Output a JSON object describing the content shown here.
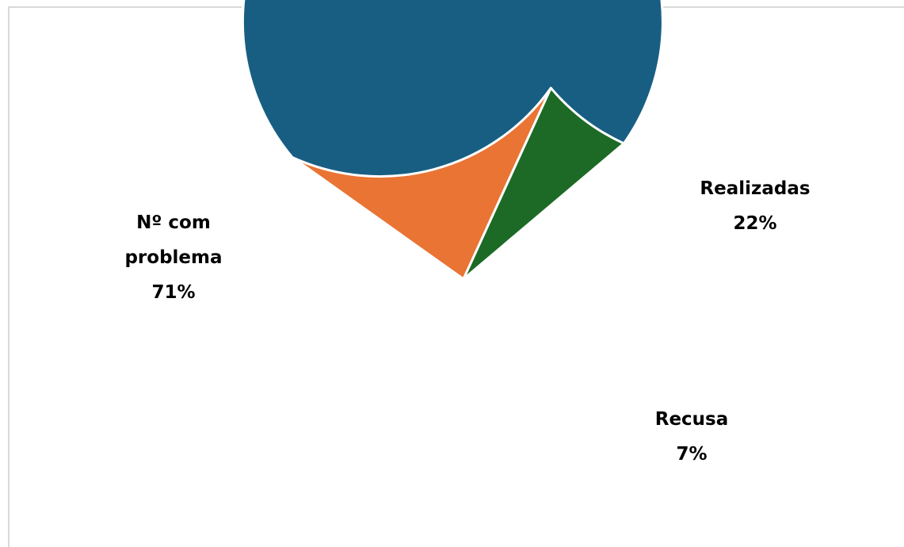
{
  "chart_data": {
    "type": "pie",
    "title": "",
    "slices": [
      {
        "label_lines": [
          "Nº com",
          "problema"
        ],
        "value": 71,
        "value_label": "71%",
        "color": "#185e83"
      },
      {
        "label_lines": [
          "Realizadas"
        ],
        "value": 22,
        "value_label": "22%",
        "color": "#e97434"
      },
      {
        "label_lines": [
          "Recusa"
        ],
        "value": 7,
        "value_label": "7%",
        "color": "#1c6a26"
      }
    ],
    "start_angle_deg": 40.2,
    "direction": "counterclockwise",
    "legend": "none",
    "data_labels": "outside"
  }
}
